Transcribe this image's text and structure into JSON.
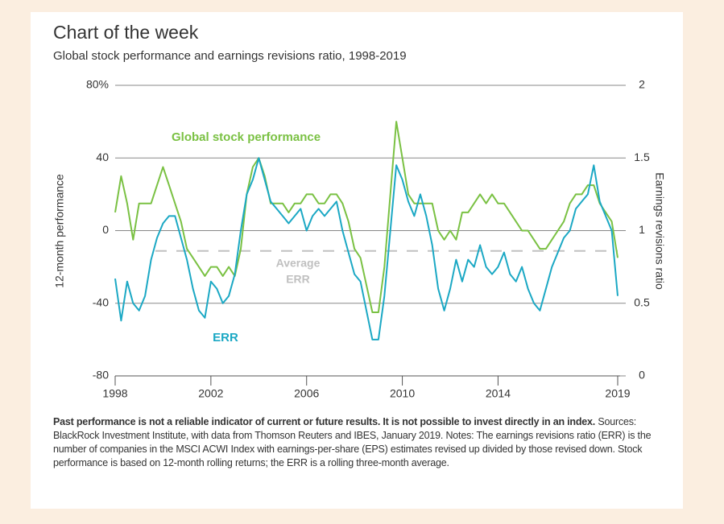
{
  "chart_data": {
    "type": "line",
    "title": "Chart of the week",
    "subtitle": "Global stock performance and earnings revisions ratio, 1998-2019",
    "y_label": "12-month performance",
    "y2_label": "Earnings revisions ratio",
    "xlim": [
      1998,
      2019
    ],
    "xticks": [
      1998,
      2002,
      2006,
      2010,
      2014,
      2019
    ],
    "ylim": [
      -80,
      80
    ],
    "yticks": [
      -80,
      -40,
      0,
      40,
      {
        "value": 80,
        "label": "80%"
      }
    ],
    "y2lim": [
      0,
      2
    ],
    "y2ticks": [
      0,
      0.5,
      1,
      1.5,
      2
    ],
    "grid": true,
    "x": [
      1998,
      1998.25,
      1998.5,
      1998.75,
      1999,
      1999.25,
      1999.5,
      1999.75,
      2000,
      2000.25,
      2000.5,
      2000.75,
      2001,
      2001.25,
      2001.5,
      2001.75,
      2002,
      2002.25,
      2002.5,
      2002.75,
      2003,
      2003.25,
      2003.5,
      2003.75,
      2004,
      2004.25,
      2004.5,
      2004.75,
      2005,
      2005.25,
      2005.5,
      2005.75,
      2006,
      2006.25,
      2006.5,
      2006.75,
      2007,
      2007.25,
      2007.5,
      2007.75,
      2008,
      2008.25,
      2008.5,
      2008.75,
      2009,
      2009.25,
      2009.5,
      2009.75,
      2010,
      2010.25,
      2010.5,
      2010.75,
      2011,
      2011.25,
      2011.5,
      2011.75,
      2012,
      2012.25,
      2012.5,
      2012.75,
      2013,
      2013.25,
      2013.5,
      2013.75,
      2014,
      2014.25,
      2014.5,
      2014.75,
      2015,
      2015.25,
      2015.5,
      2015.75,
      2016,
      2016.25,
      2016.5,
      2016.75,
      2017,
      2017.25,
      2017.5,
      2017.75,
      2018,
      2018.25,
      2018.5,
      2018.75,
      2019
    ],
    "series": [
      {
        "name": "Global stock performance",
        "color": "#7ac143",
        "values": [
          10,
          30,
          15,
          -5,
          15,
          15,
          15,
          25,
          35,
          25,
          15,
          5,
          -10,
          -15,
          -20,
          -25,
          -20,
          -20,
          -25,
          -20,
          -25,
          -10,
          20,
          35,
          40,
          30,
          15,
          15,
          15,
          10,
          15,
          15,
          20,
          20,
          15,
          15,
          20,
          20,
          15,
          5,
          -10,
          -15,
          -30,
          -45,
          -45,
          -20,
          20,
          60,
          40,
          20,
          15,
          15,
          15,
          15,
          0,
          -5,
          0,
          -5,
          10,
          10,
          15,
          20,
          15,
          20,
          15,
          15,
          10,
          5,
          0,
          0,
          -5,
          -10,
          -10,
          -5,
          0,
          5,
          15,
          20,
          20,
          25,
          25,
          15,
          10,
          5,
          -15
        ]
      },
      {
        "name": "ERR",
        "color": "#1ba8c4",
        "axis": "y2",
        "values": [
          0.67,
          0.38,
          0.65,
          0.5,
          0.45,
          0.55,
          0.8,
          0.95,
          1.05,
          1.1,
          1.1,
          0.95,
          0.8,
          0.6,
          0.45,
          0.4,
          0.65,
          0.6,
          0.5,
          0.55,
          0.7,
          1.0,
          1.25,
          1.35,
          1.5,
          1.35,
          1.2,
          1.15,
          1.1,
          1.05,
          1.1,
          1.15,
          1.0,
          1.1,
          1.15,
          1.1,
          1.15,
          1.2,
          1.0,
          0.85,
          0.7,
          0.65,
          0.45,
          0.25,
          0.25,
          0.55,
          1.0,
          1.45,
          1.35,
          1.2,
          1.1,
          1.25,
          1.1,
          0.9,
          0.6,
          0.45,
          0.6,
          0.8,
          0.65,
          0.8,
          0.75,
          0.9,
          0.75,
          0.7,
          0.75,
          0.85,
          0.7,
          0.65,
          0.75,
          0.6,
          0.5,
          0.45,
          0.6,
          0.75,
          0.85,
          0.95,
          1.0,
          1.15,
          1.2,
          1.25,
          1.45,
          1.2,
          1.1,
          1.0,
          0.55
        ]
      }
    ],
    "reference_line": {
      "label": [
        "Average",
        "ERR"
      ],
      "value": 0.86,
      "axis": "y2",
      "color": "#c0c0c0"
    }
  },
  "footnote": {
    "bold": "Past performance is not a reliable indicator of current or future results. It is not possible to invest directly in an index.",
    "text": " Sources: BlackRock Investment Institute, with data from Thomson Reuters and IBES, January 2019. Notes: The earnings revisions ratio (ERR) is the number of companies in the MSCI ACWI Index with earnings-per-share (EPS) estimates revised up divided by those revised down. Stock performance is based on 12-month rolling returns; the ERR is a rolling three-month average."
  }
}
